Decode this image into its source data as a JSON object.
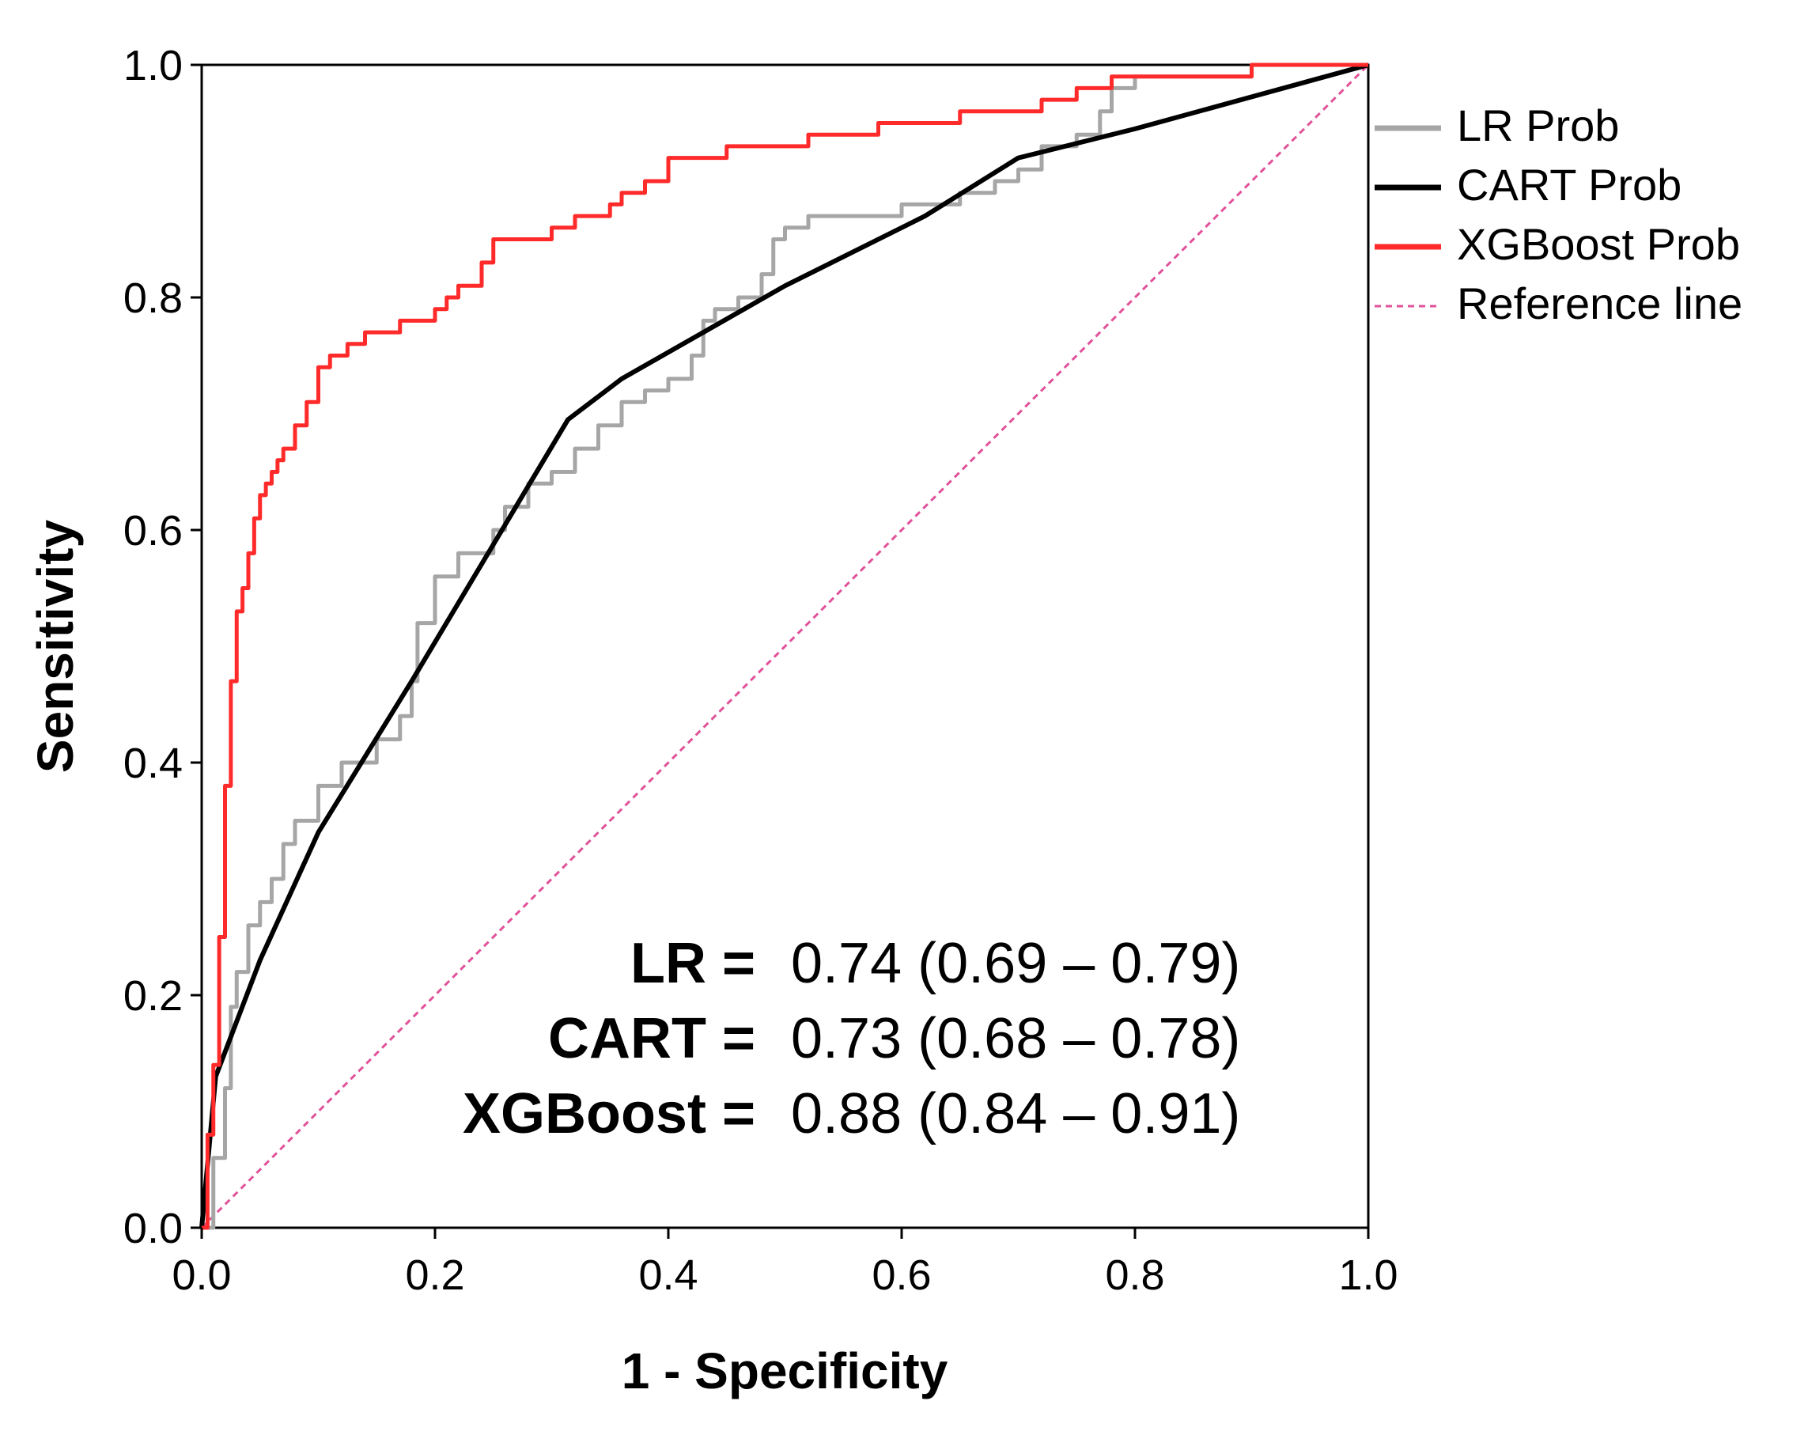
{
  "chart_data": {
    "type": "line",
    "title": "",
    "xlabel": "1 - Specificity",
    "ylabel": "Sensitivity",
    "xlim": [
      0,
      1
    ],
    "ylim": [
      0,
      1
    ],
    "xticks": [
      "0.0",
      "0.2",
      "0.4",
      "0.6",
      "0.8",
      "1.0"
    ],
    "yticks": [
      "0.0",
      "0.2",
      "0.4",
      "0.6",
      "0.8",
      "1.0"
    ],
    "legend_position": "right",
    "series": [
      {
        "name": "LR Prob",
        "color": "#a6a6a6",
        "style": "step",
        "x": [
          0,
          0.01,
          0.02,
          0.025,
          0.03,
          0.04,
          0.05,
          0.06,
          0.07,
          0.08,
          0.1,
          0.12,
          0.15,
          0.17,
          0.18,
          0.185,
          0.2,
          0.22,
          0.25,
          0.26,
          0.28,
          0.3,
          0.32,
          0.34,
          0.36,
          0.38,
          0.4,
          0.42,
          0.43,
          0.44,
          0.46,
          0.48,
          0.49,
          0.5,
          0.52,
          0.55,
          0.6,
          0.65,
          0.68,
          0.7,
          0.72,
          0.75,
          0.77,
          0.78,
          0.8,
          0.85,
          0.9,
          0.95,
          1.0
        ],
        "y": [
          0,
          0.06,
          0.12,
          0.19,
          0.22,
          0.26,
          0.28,
          0.3,
          0.33,
          0.35,
          0.38,
          0.4,
          0.42,
          0.44,
          0.47,
          0.52,
          0.56,
          0.58,
          0.6,
          0.62,
          0.64,
          0.65,
          0.67,
          0.69,
          0.71,
          0.72,
          0.73,
          0.75,
          0.78,
          0.79,
          0.8,
          0.82,
          0.85,
          0.86,
          0.87,
          0.87,
          0.88,
          0.89,
          0.9,
          0.91,
          0.93,
          0.94,
          0.96,
          0.98,
          0.99,
          0.99,
          1.0,
          1.0,
          1.0
        ]
      },
      {
        "name": "CART Prob",
        "color": "#000000",
        "style": "line",
        "x": [
          0,
          0.012,
          0.05,
          0.1,
          0.18,
          0.314,
          0.36,
          0.5,
          0.62,
          0.7,
          0.8,
          1.0
        ],
        "y": [
          0,
          0.13,
          0.23,
          0.34,
          0.47,
          0.695,
          0.73,
          0.81,
          0.87,
          0.92,
          0.945,
          1.0
        ]
      },
      {
        "name": "XGBoost Prob",
        "color": "#ff2a2a",
        "style": "step",
        "x": [
          0,
          0.005,
          0.01,
          0.015,
          0.02,
          0.025,
          0.03,
          0.035,
          0.04,
          0.045,
          0.05,
          0.055,
          0.06,
          0.065,
          0.07,
          0.08,
          0.09,
          0.1,
          0.11,
          0.125,
          0.14,
          0.15,
          0.17,
          0.2,
          0.21,
          0.22,
          0.24,
          0.25,
          0.3,
          0.32,
          0.35,
          0.36,
          0.38,
          0.4,
          0.42,
          0.45,
          0.48,
          0.52,
          0.55,
          0.58,
          0.65,
          0.72,
          0.75,
          0.78,
          0.85,
          0.9,
          1.0
        ],
        "y": [
          0,
          0.08,
          0.14,
          0.25,
          0.38,
          0.47,
          0.53,
          0.55,
          0.58,
          0.61,
          0.63,
          0.64,
          0.65,
          0.66,
          0.67,
          0.69,
          0.71,
          0.74,
          0.75,
          0.76,
          0.77,
          0.77,
          0.78,
          0.79,
          0.8,
          0.81,
          0.83,
          0.85,
          0.86,
          0.87,
          0.88,
          0.89,
          0.9,
          0.92,
          0.92,
          0.93,
          0.93,
          0.94,
          0.94,
          0.95,
          0.96,
          0.97,
          0.98,
          0.99,
          0.99,
          1.0,
          1.0
        ]
      },
      {
        "name": "Reference line",
        "color": "#e0529a",
        "style": "dashed",
        "x": [
          0,
          1
        ],
        "y": [
          0,
          1
        ]
      }
    ],
    "annotations": [
      {
        "name": "LR =",
        "value": "0.74 (0.69 – 0.79)"
      },
      {
        "name": "CART =",
        "value": "0.73 (0.68 – 0.78)"
      },
      {
        "name": "XGBoost =",
        "value": "0.88 (0.84 – 0.91)"
      }
    ]
  }
}
